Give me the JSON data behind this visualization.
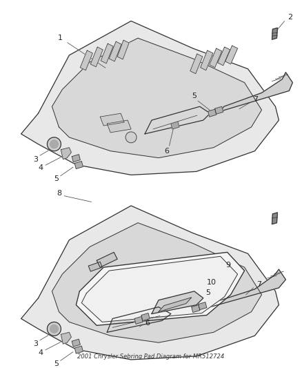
{
  "title": "2001 Chrysler Sebring Pad Diagram for MR512724",
  "bg_color": "#ffffff",
  "line_color": "#333333",
  "fill_color": "#e0e0e0",
  "fig_width": 4.38,
  "fig_height": 5.33,
  "dpi": 100
}
